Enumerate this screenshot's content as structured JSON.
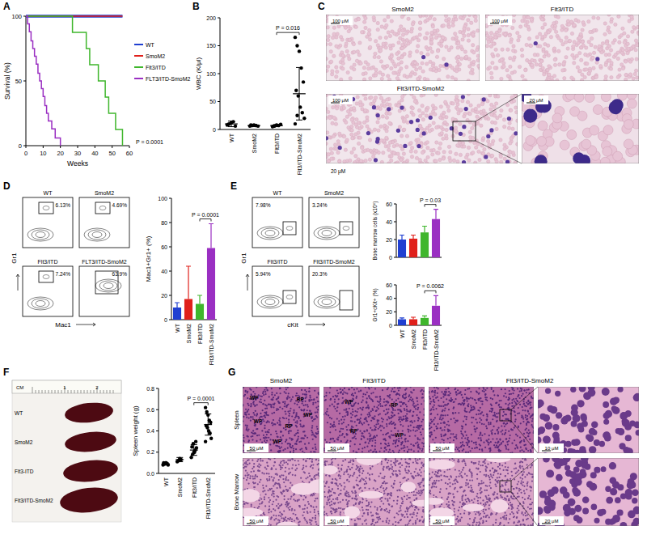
{
  "chart_data": [
    {
      "type": "line",
      "line_style": "step",
      "x_label": "Weeks",
      "y_label": "Survival (%)",
      "xlim": [
        0,
        60
      ],
      "xticks": [
        0,
        10,
        20,
        30,
        40,
        50,
        60
      ],
      "ylim": [
        0,
        100
      ],
      "yticks": [
        0,
        50,
        100
      ],
      "legend": "right",
      "annotations": [
        "P = 0.0001"
      ],
      "series": [
        {
          "name": "WT",
          "color": "#1f3fd1",
          "x": [
            0,
            56
          ],
          "values": [
            100,
            100
          ]
        },
        {
          "name": "SmoM2",
          "color": "#e0201b",
          "x": [
            0,
            56
          ],
          "values": [
            100,
            100
          ]
        },
        {
          "name": "Flt3/ITD",
          "color": "#3fb62c",
          "x": [
            0,
            27,
            35,
            37,
            42,
            46,
            48,
            52,
            56
          ],
          "values": [
            100,
            87.5,
            75,
            62.5,
            50,
            37.5,
            25,
            12.5,
            0
          ]
        },
        {
          "name": "FLT3/ITD-SmoM2",
          "color": "#9a2fc2",
          "x": [
            0,
            1,
            2,
            3,
            4,
            5,
            6,
            7,
            8,
            9,
            10,
            11,
            12,
            13,
            15,
            17,
            20
          ],
          "values": [
            100,
            94,
            88,
            81,
            75,
            69,
            63,
            56,
            50,
            44,
            38,
            31,
            25,
            19,
            13,
            6,
            0
          ]
        }
      ]
    },
    {
      "type": "dot",
      "y_label": "WBC (K/μl)",
      "categories": [
        "WT",
        "SmoM2",
        "Flt3/ITD",
        "Flt3/ITD-SmoM2"
      ],
      "points": [
        [
          8,
          10,
          12,
          14,
          6,
          9
        ],
        [
          6,
          7,
          8,
          7,
          6,
          8
        ],
        [
          5,
          6,
          8,
          7,
          9,
          6
        ],
        [
          165,
          150,
          140,
          110,
          85,
          70,
          60,
          40,
          30,
          20,
          10,
          25
        ]
      ],
      "values": [
        10,
        7,
        7,
        64
      ],
      "errors": [
        5,
        2,
        2,
        47
      ],
      "ylim": [
        0,
        200
      ],
      "yticks": [
        0,
        50,
        100,
        150,
        200
      ],
      "annotations": [
        "P = 0.016"
      ]
    },
    {
      "type": "bar",
      "y_label": "Mac1+Gr1+ (%)",
      "categories": [
        "WT",
        "SmoM2",
        "Flt3/ITD",
        "Flt3/ITD-SmoM2"
      ],
      "values": [
        10,
        17,
        13,
        59
      ],
      "errors": [
        4,
        27,
        7,
        20
      ],
      "colors": [
        "#1f3fd1",
        "#e0201b",
        "#3fb62c",
        "#9a2fc2"
      ],
      "ylim": [
        0,
        100
      ],
      "yticks": [
        0,
        20,
        40,
        60,
        80,
        100
      ],
      "annotations": [
        "P = 0.0001"
      ]
    },
    {
      "type": "bar",
      "y_label": "Bone marrow cells (x10⁶)",
      "categories": [
        null,
        null,
        null,
        null
      ],
      "values": [
        20,
        21,
        28,
        43
      ],
      "errors": [
        5,
        4,
        7,
        11
      ],
      "colors": [
        "#1f3fd1",
        "#e0201b",
        "#3fb62c",
        "#9a2fc2"
      ],
      "ylim": [
        0,
        60
      ],
      "yticks": [
        0,
        20,
        40,
        60
      ],
      "tick_labels": "y",
      "annotations": [
        "P = 0.03"
      ]
    },
    {
      "type": "bar",
      "y_label": "Gr1+cKit+ (%)",
      "categories": [
        "WT",
        "SmoM2",
        "Flt3/ITD",
        "Flt3/ITD-SmoM2"
      ],
      "values": [
        9,
        9,
        11,
        29
      ],
      "errors": [
        2,
        3,
        3,
        15
      ],
      "colors": [
        "#1f3fd1",
        "#e0201b",
        "#3fb62c",
        "#9a2fc2"
      ],
      "ylim": [
        0,
        60
      ],
      "yticks": [
        0,
        20,
        40,
        60
      ],
      "annotations": [
        "P = 0.0062"
      ]
    },
    {
      "type": "dot",
      "y_label": "Spleen weight (g)",
      "categories": [
        "WT",
        "SmoM2",
        "Flt3/ITD",
        "Flt3/ITD-SmoM2"
      ],
      "points": [
        [
          0.08,
          0.09,
          0.1,
          0.09,
          0.08,
          0.1,
          0.09,
          0.1
        ],
        [
          0.11,
          0.12,
          0.14,
          0.13
        ],
        [
          0.15,
          0.18,
          0.2,
          0.22,
          0.24,
          0.25,
          0.28,
          0.2,
          0.3
        ],
        [
          0.62,
          0.58,
          0.55,
          0.5,
          0.48,
          0.45,
          0.43,
          0.4,
          0.38,
          0.33,
          0.3
        ]
      ],
      "values": [
        0.09,
        0.13,
        0.22,
        0.46
      ],
      "errors": [
        0.01,
        0.02,
        0.05,
        0.1
      ],
      "ylim": [
        0,
        0.8
      ],
      "yticks": [
        {
          "value": 0,
          "label": "0.0"
        },
        0.2,
        0.4,
        0.6,
        0.8
      ],
      "annotations": [
        "P = 0.0001"
      ]
    }
  ],
  "figure": {
    "panel_labels": [
      "A",
      "B",
      "C",
      "D",
      "E",
      "F",
      "G"
    ],
    "C": {
      "images": [
        {
          "title": "SmoM2",
          "scale": "100 μM"
        },
        {
          "title": "Flt3/ITD",
          "scale": "100 μM"
        },
        {
          "title": "Flt3/ITD-SmoM2",
          "scale": "100 μM"
        },
        {
          "scale": "20 μM"
        }
      ],
      "note_scale": "20 μM"
    },
    "D_flow": {
      "x_label": "Mac1",
      "y_label": "Gr1",
      "plots": [
        {
          "title": "WT",
          "gate": "6.13%"
        },
        {
          "title": "SmoM2",
          "gate": "4.69%"
        },
        {
          "title": "Flt3/ITD",
          "gate": "7.24%"
        },
        {
          "title": "FLT3/ITD-SmoM2",
          "gate": "63.9%"
        }
      ]
    },
    "E_flow": {
      "x_label": "cKit",
      "y_label": "Gr1",
      "plots": [
        {
          "title": "WT",
          "gate": "7.98%"
        },
        {
          "title": "SmoM2",
          "gate": "3.24%"
        },
        {
          "title": "Flt3/ITD",
          "gate": "5.94%"
        },
        {
          "title": "Flt3/ITD-SmoM2",
          "gate": "20.3%"
        }
      ]
    },
    "F_photo": {
      "ruler": [
        "CM",
        "1",
        "2"
      ],
      "labels": [
        "WT",
        "SmoM2",
        "Flt3-ITD",
        "Flt3/ITD-SmoM2"
      ]
    },
    "G": {
      "columns": [
        "SmoM2",
        "Flt3/ITD",
        "Flt3/ITD-SmoM2"
      ],
      "rows": [
        "Spleen",
        "Bone Marrow"
      ],
      "spleen_regions": [
        [
          "WP",
          "RP",
          "WP",
          "RP",
          "WP",
          "WP"
        ],
        [
          "WP",
          "RP",
          "RP",
          "WP"
        ]
      ],
      "scales": [
        [
          "50 μM",
          "50 μM",
          "50 μM",
          "10 μM"
        ],
        [
          "50 μM",
          "50 μM",
          "50 μM",
          "20 μM"
        ]
      ]
    }
  }
}
